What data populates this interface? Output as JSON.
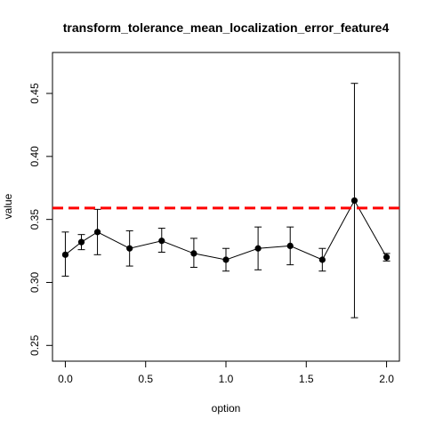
{
  "chart_data": {
    "type": "line",
    "title": "transform_tolerance_mean_localization_error_feature4",
    "xlabel": "option",
    "ylabel": "value",
    "xlim": [
      -0.08,
      2.08
    ],
    "ylim": [
      0.2375,
      0.4825
    ],
    "x_ticks": [
      "0.0",
      "0.5",
      "1.0",
      "1.5",
      "2.0"
    ],
    "y_ticks": [
      "0.25",
      "0.30",
      "0.35",
      "0.40",
      "0.45"
    ],
    "x_tick_values": [
      0.0,
      0.5,
      1.0,
      1.5,
      2.0
    ],
    "y_tick_values": [
      0.25,
      0.3,
      0.35,
      0.4,
      0.45
    ],
    "reference_line": {
      "y": 0.359,
      "color": "#ff0000",
      "style": "dashed"
    },
    "series": [
      {
        "x": [
          0.0,
          0.1,
          0.2,
          0.4,
          0.6,
          0.8,
          1.0,
          1.2,
          1.4,
          1.6,
          1.8,
          2.0
        ],
        "y": [
          0.322,
          0.332,
          0.34,
          0.327,
          0.333,
          0.323,
          0.318,
          0.327,
          0.329,
          0.318,
          0.365,
          0.32
        ],
        "lower": [
          0.305,
          0.326,
          0.322,
          0.313,
          0.324,
          0.312,
          0.309,
          0.31,
          0.314,
          0.309,
          0.272,
          0.317
        ],
        "upper": [
          0.34,
          0.338,
          0.358,
          0.341,
          0.343,
          0.335,
          0.327,
          0.344,
          0.344,
          0.327,
          0.458,
          0.323
        ],
        "color": "#000000",
        "marker": "filled-circle"
      }
    ],
    "grid": false,
    "legend": "none"
  }
}
